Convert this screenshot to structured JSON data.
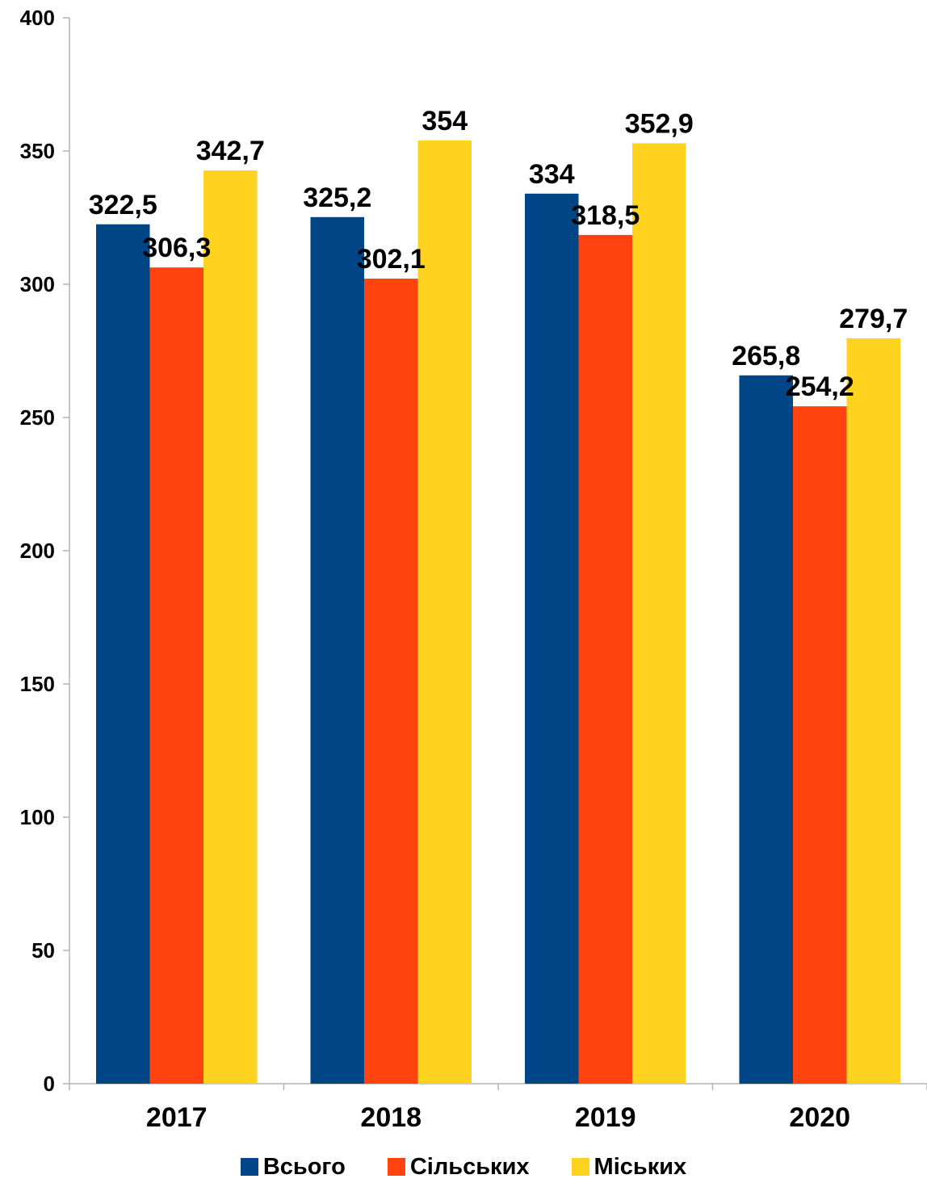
{
  "chart_data": {
    "type": "bar",
    "categories": [
      "2017",
      "2018",
      "2019",
      "2020"
    ],
    "series": [
      {
        "name": "Всього",
        "color": "#004586",
        "values": [
          322.5,
          325.2,
          334,
          265.8
        ],
        "labels": [
          "322,5",
          "325,2",
          "334",
          "265,8"
        ]
      },
      {
        "name": "Сільських",
        "color": "#ff420e",
        "values": [
          306.3,
          302.1,
          318.5,
          254.2
        ],
        "labels": [
          "306,3",
          "302,1",
          "318,5",
          "254,2"
        ]
      },
      {
        "name": "Міських",
        "color": "#ffd320",
        "values": [
          342.7,
          354,
          352.9,
          279.7
        ],
        "labels": [
          "342,7",
          "354",
          "352,9",
          "279,7"
        ]
      }
    ],
    "ylim": [
      0,
      400
    ],
    "yticks": [
      0,
      50,
      100,
      150,
      200,
      250,
      300,
      350,
      400
    ],
    "grid": false,
    "legend_position": "bottom"
  }
}
